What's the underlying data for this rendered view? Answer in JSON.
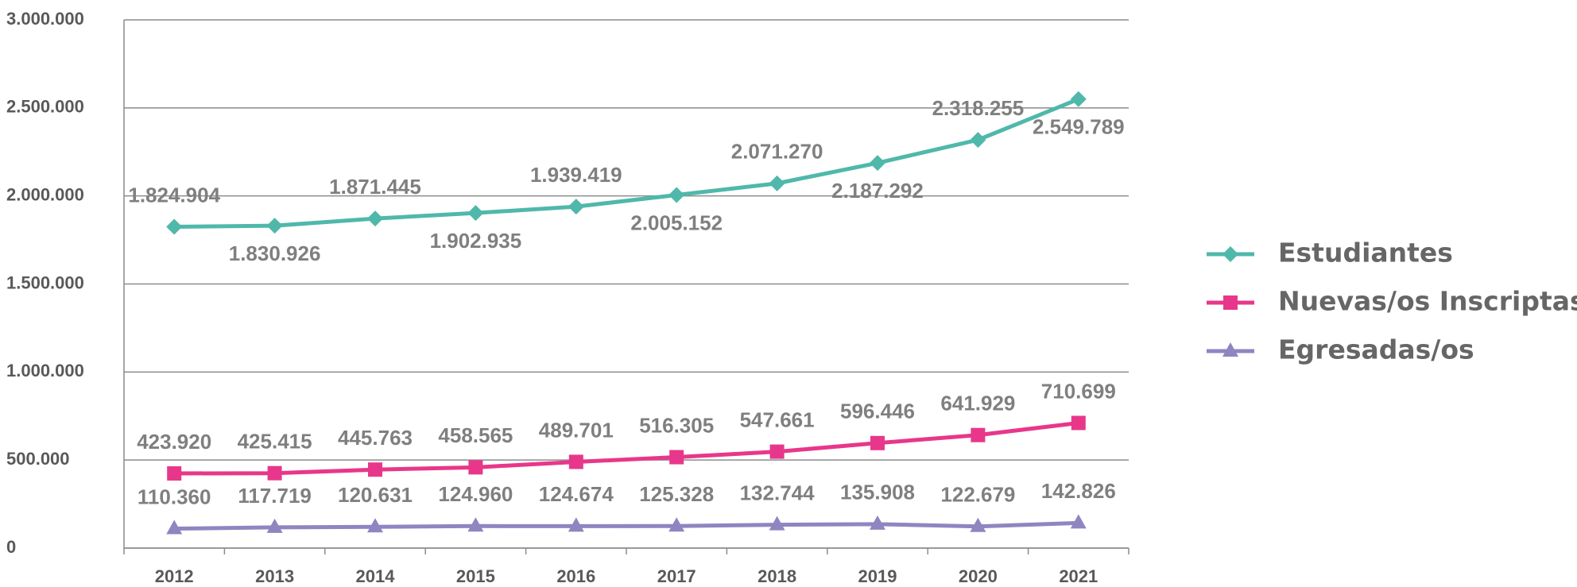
{
  "chart_data": {
    "type": "line",
    "categories": [
      "2012",
      "2013",
      "2014",
      "2015",
      "2016",
      "2017",
      "2018",
      "2019",
      "2020",
      "2021"
    ],
    "ylim": [
      0,
      3000000
    ],
    "yticks": [
      0,
      {
        "value": 500000,
        "label": "500.000"
      },
      {
        "value": 1000000,
        "label": "1.000.000"
      },
      {
        "value": 1500000,
        "label": "1.500.000"
      },
      {
        "value": 2000000,
        "label": "2.000.000"
      },
      {
        "value": 2500000,
        "label": "2.500.000"
      },
      {
        "value": 3000000,
        "label": "3.000.000"
      }
    ],
    "grid": true,
    "legend": "right",
    "series": [
      {
        "name": "Estudiantes",
        "color": "#4fb8ab",
        "marker": "diamond",
        "values": [
          1824904,
          1830926,
          1871445,
          1902935,
          1939419,
          2005152,
          2071270,
          2187292,
          2318255,
          2549789
        ],
        "value_labels": [
          "1.824.904",
          "1.830.926",
          "1.871.445",
          "1.902.935",
          "1.939.419",
          "2.005.152",
          "2.071.270",
          "2.187.292",
          "2.318.255",
          "2.549.789"
        ]
      },
      {
        "name": "Nuevas/os Inscriptas/os",
        "color": "#e8378a",
        "marker": "square",
        "values": [
          423920,
          425415,
          445763,
          458565,
          489701,
          516305,
          547661,
          596446,
          641929,
          710699
        ],
        "value_labels": [
          "423.920",
          "425.415",
          "445.763",
          "458.565",
          "489.701",
          "516.305",
          "547.661",
          "596.446",
          "641.929",
          "710.699"
        ]
      },
      {
        "name": "Egresadas/os",
        "color": "#9085c1",
        "marker": "triangle",
        "values": [
          110360,
          117719,
          120631,
          124960,
          124674,
          125328,
          132744,
          135908,
          122679,
          142826
        ],
        "value_labels": [
          "110.360",
          "117.719",
          "120.631",
          "124.960",
          "124.674",
          "125.328",
          "132.744",
          "135.908",
          "122.679",
          "142.826"
        ]
      }
    ]
  }
}
